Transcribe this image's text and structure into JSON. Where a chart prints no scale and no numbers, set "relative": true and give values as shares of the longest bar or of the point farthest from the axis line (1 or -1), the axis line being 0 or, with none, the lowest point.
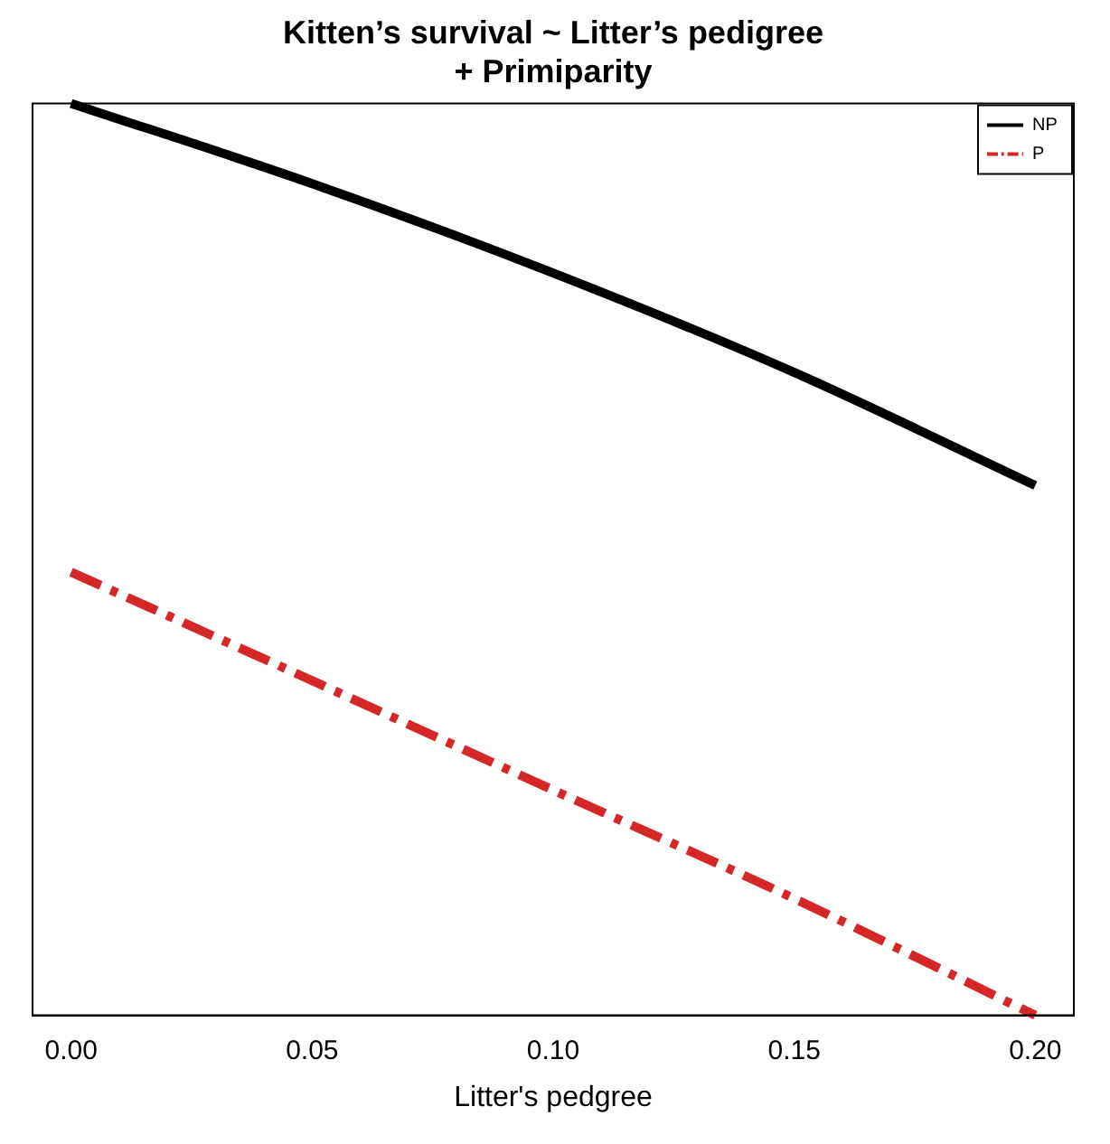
{
  "chart_data": {
    "type": "line",
    "title": "Kitten’s survival ~ Litter’s pedigree + Primiparity",
    "xlabel": "Litter's pedgree",
    "relative": true,
    "x": [
      0,
      0.05,
      0.1,
      0.15,
      0.2
    ],
    "series": [
      {
        "name": "NP",
        "color": "#000000",
        "line_style": "solid",
        "values": [
          1,
          0.912,
          0.814,
          0.705,
          0.581
        ]
      },
      {
        "name": "P",
        "color": "#d62728",
        "line_style": "dashed",
        "values": [
          0.486,
          0.367,
          0.247,
          0.128,
          0
        ]
      }
    ],
    "xlim": [
      -0.008,
      0.208
    ],
    "xticks": [
      {
        "value": 0,
        "label": "0.00"
      },
      {
        "value": 0.05,
        "label": "0.05"
      },
      {
        "value": 0.1,
        "label": "0.10"
      },
      {
        "value": 0.15,
        "label": "0.15"
      },
      {
        "value": 0.2,
        "label": "0.20"
      }
    ],
    "legend": "top right",
    "grid": false,
    "marker": "none"
  }
}
